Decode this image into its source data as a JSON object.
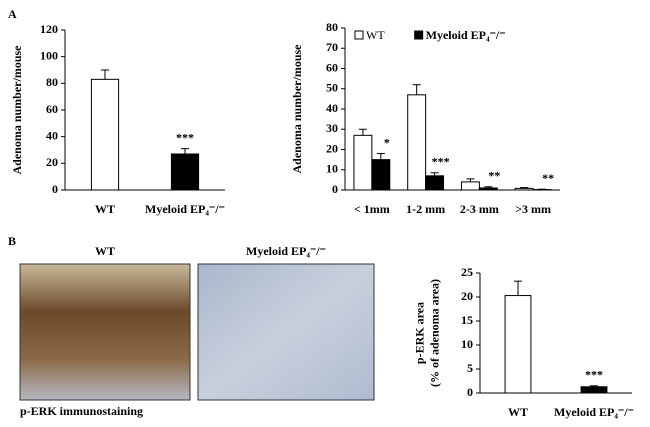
{
  "figure": {
    "panel_a": "A",
    "panel_b": "B",
    "image_wt": "WT",
    "image_ko": "Myeloid EP₄⁻/⁻",
    "image_caption": "p-ERK immunostaining"
  },
  "chart_data": [
    {
      "type": "bar",
      "ylabel": [
        "Adenoma number/mouse"
      ],
      "categories": [
        "WT",
        "Myeloid EP₄⁻/⁻"
      ],
      "values": [
        83,
        27
      ],
      "errors": [
        7,
        4
      ],
      "colors": [
        "#ffffff",
        "#000000"
      ],
      "annotations": [
        null,
        "***"
      ],
      "ylim": [
        0,
        120
      ],
      "yticks": [
        0,
        20,
        40,
        60,
        80,
        100,
        120
      ]
    },
    {
      "type": "bar",
      "ylabel": [
        "Adenoma number/mouse"
      ],
      "categories": [
        "< 1mm",
        "1-2 mm",
        "2-3 mm",
        ">3 mm"
      ],
      "series": [
        {
          "name": "WT",
          "color": "#ffffff",
          "values": [
            27,
            47,
            4,
            0.8
          ],
          "errors": [
            3,
            5,
            1.5,
            0.4
          ]
        },
        {
          "name": "Myeloid EP₄⁻/⁻",
          "color": "#000000",
          "values": [
            15,
            7,
            1,
            0.2
          ],
          "errors": [
            3,
            1.5,
            0.6,
            0.2
          ],
          "annotations": [
            "*",
            "***",
            "**",
            "**"
          ]
        }
      ],
      "ylim": [
        0,
        80
      ],
      "yticks": [
        0,
        10,
        20,
        30,
        40,
        50,
        60,
        70,
        80
      ],
      "legend": "top"
    },
    {
      "type": "bar",
      "ylabel": [
        "p-ERK area",
        "(% of adenoma area)"
      ],
      "categories": [
        "WT",
        "Myeloid EP₄⁻/⁻"
      ],
      "values": [
        20.3,
        1.3
      ],
      "errors": [
        3,
        0.2
      ],
      "colors": [
        "#ffffff",
        "#000000"
      ],
      "annotations": [
        null,
        "***"
      ],
      "ylim": [
        0,
        25
      ],
      "yticks": [
        0,
        5,
        10,
        15,
        20,
        25
      ]
    }
  ]
}
